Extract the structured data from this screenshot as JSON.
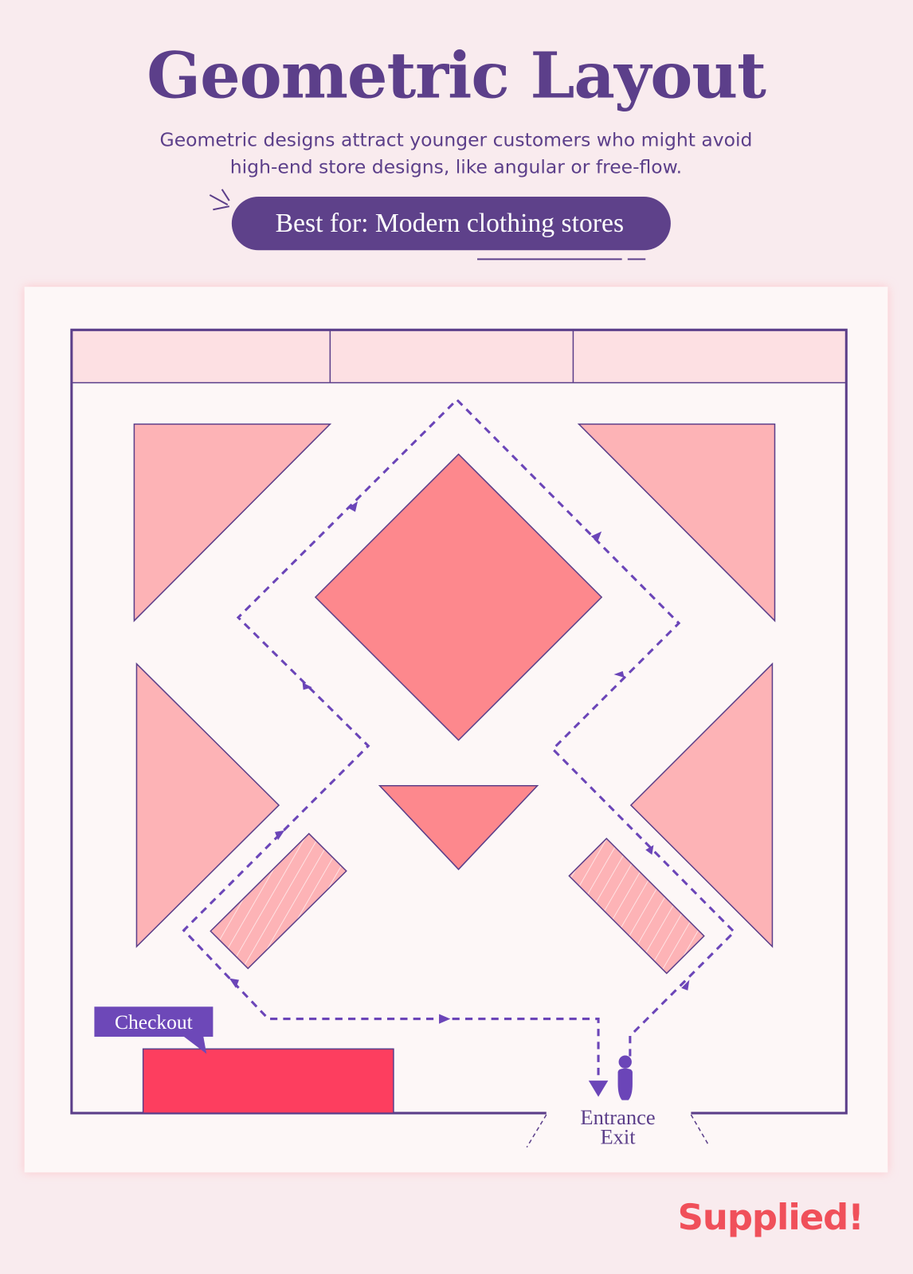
{
  "header": {
    "title": "Geometric Layout",
    "subtitle_line1": "Geometric designs attract younger customers who might avoid",
    "subtitle_line2": "high-end store designs, like angular or free-flow.",
    "badge": "Best for: Modern clothing stores"
  },
  "floor_plan": {
    "checkout_label": "Checkout",
    "entrance_label": "Entrance",
    "exit_label": "Exit",
    "icons": [
      "person-icon",
      "direction-arrow-icon"
    ]
  },
  "colors": {
    "primary_purple": "#5c3f8a",
    "path_purple": "#6b45b8",
    "light_pink": "#fdb3b6",
    "mid_pink": "#fd888d",
    "checkout_red": "#fd3e5f",
    "brand_red": "#f0505a"
  },
  "brand": {
    "logo": "Supplied!"
  }
}
